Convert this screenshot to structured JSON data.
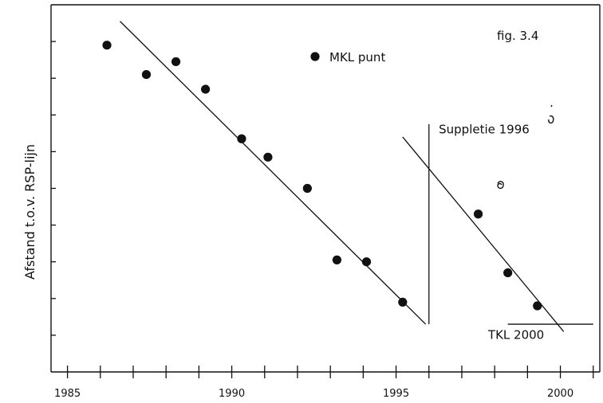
{
  "chart_data": {
    "type": "scatter",
    "title": "",
    "figure_label": "fig. 3.4",
    "xlabel": "",
    "ylabel": "Afstand t.o.v. RSP-lijn",
    "xlim": [
      1984.5,
      2001.2
    ],
    "ylim": [
      0,
      100
    ],
    "x_ticks": [
      1985,
      1990,
      1995,
      2000
    ],
    "x_minor_ticks": [
      1986,
      1987,
      1988,
      1989,
      1991,
      1992,
      1993,
      1994,
      1996,
      1997,
      1998,
      1999,
      2001
    ],
    "y_ticks": [
      10,
      20,
      30,
      40,
      50,
      60,
      70,
      80,
      90
    ],
    "grid": false,
    "legend": {
      "label": "MKL punt",
      "position": "top-center"
    },
    "series": [
      {
        "name": "MKL punt",
        "points": [
          {
            "x": 1986.2,
            "y": 89
          },
          {
            "x": 1987.4,
            "y": 81
          },
          {
            "x": 1988.3,
            "y": 84.5
          },
          {
            "x": 1989.2,
            "y": 77
          },
          {
            "x": 1990.3,
            "y": 63.5
          },
          {
            "x": 1991.1,
            "y": 58.5
          },
          {
            "x": 1992.3,
            "y": 50
          },
          {
            "x": 1993.2,
            "y": 30.5
          },
          {
            "x": 1994.1,
            "y": 30
          },
          {
            "x": 1995.2,
            "y": 19
          }
        ]
      },
      {
        "name": "",
        "points": [
          {
            "x": 1997.5,
            "y": 43
          },
          {
            "x": 1998.4,
            "y": 27
          },
          {
            "x": 1999.3,
            "y": 18
          }
        ]
      }
    ],
    "trend_lines": [
      {
        "from": {
          "x": 1986.6,
          "y": 95.5
        },
        "to": {
          "x": 1995.9,
          "y": 13
        }
      },
      {
        "from": {
          "x": 1995.2,
          "y": 64
        },
        "to": {
          "x": 2000.1,
          "y": 11
        }
      }
    ],
    "annotations": [
      {
        "text": "Suppletie 1996",
        "x": 1996.3,
        "y": 65,
        "line": {
          "x": 1996.0,
          "y_from": 67.5,
          "y_to": 13
        }
      },
      {
        "text": "TKL 2000",
        "x": 1997.8,
        "y": 9,
        "line": {
          "y": 13,
          "x_from": 1998.4,
          "x_to": 2001.0
        }
      }
    ],
    "colors": {
      "axis": "#111111",
      "marker": "#111111",
      "background": "#ffffff"
    }
  }
}
